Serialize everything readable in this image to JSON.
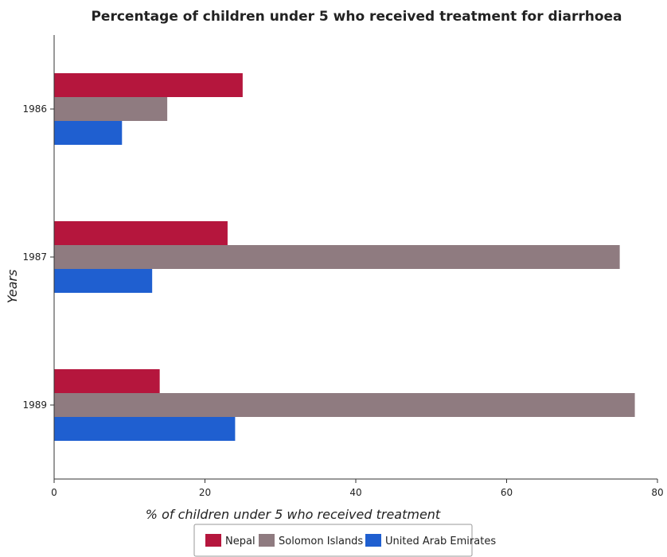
{
  "chart_data": {
    "type": "bar",
    "orientation": "horizontal",
    "title": "Percentage of children under 5 who received treatment for diarrhoea",
    "xlabel": "% of children under 5 who received treatment",
    "ylabel": "Years",
    "categories": [
      "1986",
      "1987",
      "1989"
    ],
    "xlim": [
      0,
      80
    ],
    "xticks": [
      0,
      20,
      40,
      60,
      80
    ],
    "grid": false,
    "legend_position": "bottom-center",
    "series": [
      {
        "name": "Nepal",
        "color": "#b5163d",
        "values": [
          25,
          23,
          14
        ]
      },
      {
        "name": "Solomon Islands",
        "color": "#8f7b80",
        "values": [
          15,
          75,
          77
        ]
      },
      {
        "name": "United Arab Emirates",
        "color": "#1f5fd0",
        "values": [
          9,
          13,
          24
        ]
      }
    ]
  }
}
